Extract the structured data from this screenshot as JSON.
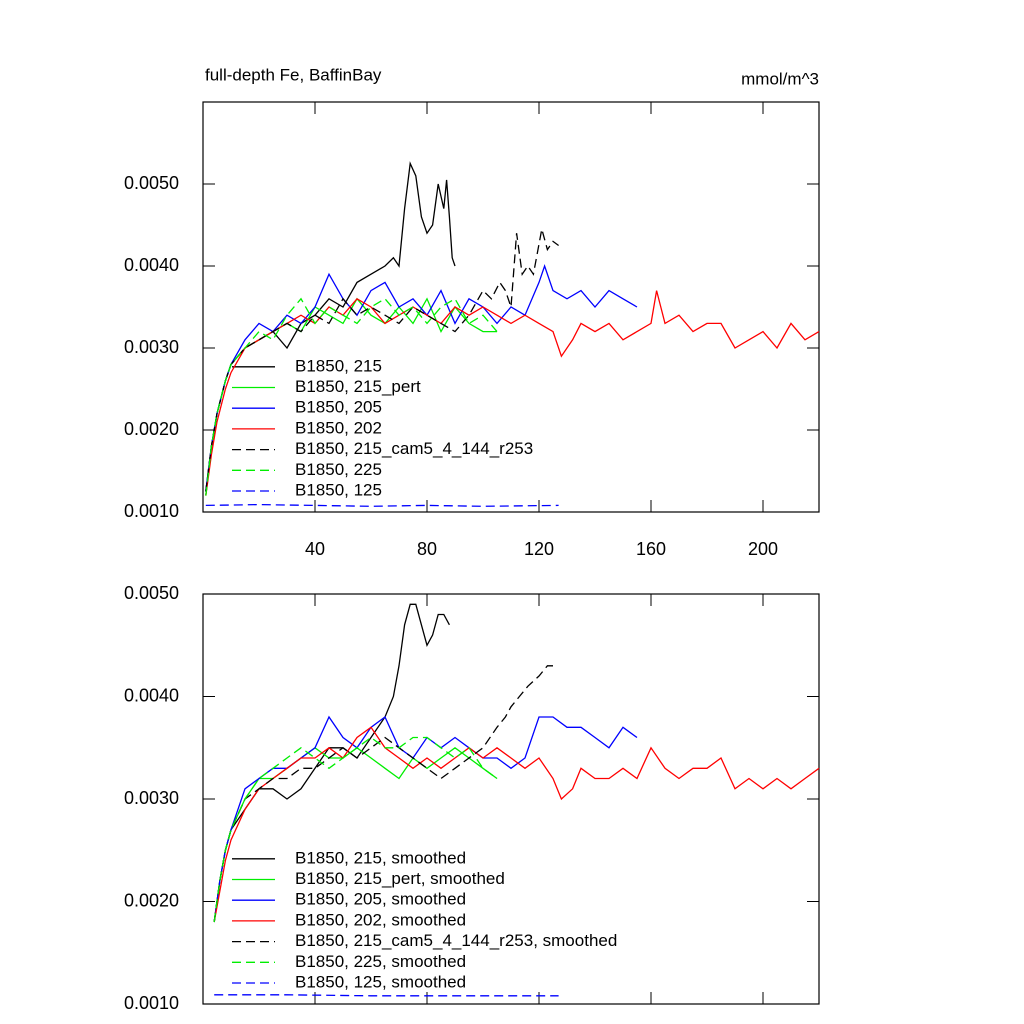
{
  "chart_data": [
    {
      "type": "line",
      "title": "full-depth Fe, BaffinBay",
      "units": "mmol/m^3",
      "xlim": [
        0,
        220
      ],
      "xticks": [
        40,
        80,
        120,
        160,
        200
      ],
      "ylim": [
        0.001,
        0.006
      ],
      "yticks": [
        {
          "value": 0.001,
          "label": "0.0010"
        },
        {
          "value": 0.002,
          "label": "0.0020"
        },
        {
          "value": 0.003,
          "label": "0.0030"
        },
        {
          "value": 0.004,
          "label": "0.0040"
        },
        {
          "value": 0.005,
          "label": "0.0050"
        }
      ],
      "legend": "lower left",
      "series": [
        {
          "name": "B1850, 215",
          "color": "#000000",
          "dashed": false,
          "x": [
            1,
            3,
            5,
            8,
            10,
            15,
            20,
            25,
            30,
            35,
            40,
            45,
            50,
            55,
            60,
            65,
            68,
            70,
            72,
            74,
            76,
            78,
            80,
            82,
            84,
            86,
            87,
            88,
            89,
            90
          ],
          "values": [
            0.00125,
            0.0018,
            0.0022,
            0.0026,
            0.0028,
            0.003,
            0.0031,
            0.0032,
            0.003,
            0.0033,
            0.0034,
            0.0036,
            0.0035,
            0.0038,
            0.0039,
            0.004,
            0.0041,
            0.004,
            0.0047,
            0.00525,
            0.0051,
            0.0046,
            0.0044,
            0.0045,
            0.005,
            0.0047,
            0.00505,
            0.0046,
            0.0041,
            0.004
          ]
        },
        {
          "name": "B1850, 215_pert",
          "color": "#00ee00",
          "dashed": false,
          "x": [
            1,
            3,
            5,
            8,
            10,
            15,
            20,
            25,
            30,
            35,
            40,
            45,
            50,
            55,
            60,
            65,
            70,
            75,
            80,
            85,
            90,
            95,
            100,
            105
          ],
          "values": [
            0.0012,
            0.0018,
            0.0022,
            0.0026,
            0.0028,
            0.003,
            0.0031,
            0.0032,
            0.0033,
            0.0032,
            0.0035,
            0.0034,
            0.0033,
            0.0036,
            0.0034,
            0.0033,
            0.0035,
            0.0033,
            0.0036,
            0.0032,
            0.0035,
            0.0033,
            0.0032,
            0.0032
          ]
        },
        {
          "name": "B1850, 205",
          "color": "#0000ff",
          "dashed": false,
          "x": [
            1,
            3,
            5,
            8,
            10,
            15,
            20,
            25,
            30,
            35,
            40,
            45,
            50,
            55,
            60,
            65,
            70,
            75,
            80,
            85,
            90,
            95,
            100,
            105,
            110,
            115,
            120,
            122,
            125,
            130,
            135,
            140,
            145,
            150,
            155
          ],
          "values": [
            0.00125,
            0.0018,
            0.0022,
            0.0026,
            0.0028,
            0.0031,
            0.0033,
            0.0032,
            0.0034,
            0.0033,
            0.0035,
            0.0039,
            0.0036,
            0.0034,
            0.0037,
            0.0038,
            0.0035,
            0.0036,
            0.0034,
            0.0037,
            0.0033,
            0.0036,
            0.0035,
            0.0033,
            0.0035,
            0.0034,
            0.0038,
            0.004,
            0.0037,
            0.0036,
            0.0037,
            0.0035,
            0.0037,
            0.0036,
            0.0035
          ]
        },
        {
          "name": "B1850, 202",
          "color": "#ff0000",
          "dashed": false,
          "x": [
            1,
            3,
            5,
            8,
            10,
            15,
            20,
            25,
            30,
            35,
            40,
            45,
            50,
            55,
            60,
            65,
            70,
            75,
            80,
            85,
            90,
            95,
            100,
            105,
            110,
            115,
            120,
            125,
            128,
            132,
            135,
            140,
            145,
            150,
            155,
            160,
            162,
            165,
            170,
            175,
            180,
            185,
            190,
            195,
            200,
            205,
            210,
            215,
            220
          ],
          "values": [
            0.0012,
            0.0017,
            0.0021,
            0.0025,
            0.0027,
            0.003,
            0.0031,
            0.0032,
            0.0033,
            0.0034,
            0.0033,
            0.0035,
            0.0034,
            0.0036,
            0.0035,
            0.0033,
            0.0034,
            0.0035,
            0.0034,
            0.0033,
            0.0035,
            0.0034,
            0.0035,
            0.0034,
            0.0033,
            0.0034,
            0.0033,
            0.0032,
            0.0029,
            0.0031,
            0.0033,
            0.0032,
            0.0033,
            0.0031,
            0.0032,
            0.0033,
            0.0037,
            0.0033,
            0.0034,
            0.0032,
            0.0033,
            0.0033,
            0.003,
            0.0031,
            0.0032,
            0.003,
            0.0033,
            0.0031,
            0.0032
          ]
        },
        {
          "name": "B1850, 215_cam5_4_144_r253",
          "color": "#000000",
          "dashed": true,
          "x": [
            1,
            3,
            5,
            8,
            10,
            15,
            20,
            25,
            30,
            35,
            40,
            45,
            50,
            55,
            60,
            65,
            70,
            75,
            80,
            85,
            90,
            95,
            100,
            103,
            106,
            108,
            110,
            112,
            114,
            116,
            118,
            121,
            123,
            125,
            127
          ],
          "values": [
            0.00125,
            0.0018,
            0.0022,
            0.0026,
            0.0028,
            0.003,
            0.0031,
            0.0032,
            0.0033,
            0.0032,
            0.0034,
            0.0033,
            0.0036,
            0.0034,
            0.0035,
            0.0034,
            0.0033,
            0.0035,
            0.0034,
            0.0033,
            0.0032,
            0.0034,
            0.0037,
            0.0036,
            0.0038,
            0.0037,
            0.0035,
            0.0044,
            0.0039,
            0.004,
            0.0039,
            0.00445,
            0.0042,
            0.0043,
            0.00425
          ]
        },
        {
          "name": "B1850, 225",
          "color": "#00ee00",
          "dashed": true,
          "x": [
            1,
            3,
            5,
            8,
            10,
            15,
            20,
            25,
            30,
            35,
            40,
            45,
            50,
            55,
            60,
            65,
            70,
            75,
            80,
            85,
            90,
            95,
            100,
            105
          ],
          "values": [
            0.0012,
            0.0018,
            0.0022,
            0.0026,
            0.0028,
            0.003,
            0.0032,
            0.0031,
            0.0034,
            0.0036,
            0.0033,
            0.0035,
            0.0034,
            0.0033,
            0.0035,
            0.0036,
            0.0034,
            0.0035,
            0.0033,
            0.0035,
            0.0036,
            0.0033,
            0.0034,
            0.0032
          ]
        },
        {
          "name": "B1850, 125",
          "color": "#0000ff",
          "dashed": true,
          "x": [
            1,
            20,
            40,
            60,
            80,
            100,
            127
          ],
          "values": [
            0.00108,
            0.00109,
            0.00108,
            0.00107,
            0.00108,
            0.00107,
            0.00108
          ]
        }
      ]
    },
    {
      "type": "line",
      "xlim": [
        0,
        220
      ],
      "ylim": [
        0.001,
        0.005
      ],
      "yticks": [
        {
          "value": 0.001,
          "label": "0.0010"
        },
        {
          "value": 0.002,
          "label": "0.0020"
        },
        {
          "value": 0.003,
          "label": "0.0030"
        },
        {
          "value": 0.004,
          "label": "0.0040"
        },
        {
          "value": 0.005,
          "label": "0.0050"
        }
      ],
      "legend": "lower left",
      "series": [
        {
          "name": "B1850, 215, smoothed",
          "color": "#000000",
          "dashed": false,
          "x": [
            4,
            6,
            8,
            10,
            15,
            20,
            25,
            30,
            35,
            40,
            45,
            50,
            55,
            60,
            65,
            68,
            70,
            72,
            74,
            76,
            78,
            80,
            82,
            84,
            86,
            88
          ],
          "values": [
            0.0018,
            0.0022,
            0.0025,
            0.0027,
            0.0029,
            0.0031,
            0.0031,
            0.003,
            0.0031,
            0.0033,
            0.0035,
            0.0035,
            0.0034,
            0.0036,
            0.0038,
            0.004,
            0.0043,
            0.0047,
            0.0049,
            0.0049,
            0.0047,
            0.0045,
            0.0046,
            0.0048,
            0.0048,
            0.0047
          ]
        },
        {
          "name": "B1850, 215_pert, smoothed",
          "color": "#00ee00",
          "dashed": false,
          "x": [
            4,
            6,
            8,
            10,
            15,
            20,
            25,
            30,
            35,
            40,
            45,
            50,
            55,
            60,
            65,
            70,
            75,
            80,
            85,
            90,
            95,
            100,
            105
          ],
          "values": [
            0.0018,
            0.0022,
            0.0025,
            0.0027,
            0.003,
            0.0032,
            0.0032,
            0.0033,
            0.0034,
            0.0035,
            0.0034,
            0.0034,
            0.0035,
            0.0034,
            0.0033,
            0.0032,
            0.0034,
            0.0033,
            0.0034,
            0.0035,
            0.0034,
            0.0033,
            0.0032
          ]
        },
        {
          "name": "B1850, 205, smoothed",
          "color": "#0000ff",
          "dashed": false,
          "x": [
            4,
            6,
            8,
            10,
            15,
            20,
            25,
            30,
            35,
            40,
            45,
            50,
            55,
            60,
            65,
            70,
            75,
            80,
            85,
            90,
            95,
            100,
            105,
            110,
            115,
            120,
            125,
            130,
            135,
            140,
            145,
            150,
            155
          ],
          "values": [
            0.0018,
            0.0022,
            0.0025,
            0.0027,
            0.0031,
            0.0032,
            0.0033,
            0.0033,
            0.0034,
            0.0035,
            0.0038,
            0.0036,
            0.0035,
            0.0037,
            0.0038,
            0.0035,
            0.0034,
            0.0036,
            0.0035,
            0.0036,
            0.0035,
            0.0034,
            0.0034,
            0.0033,
            0.0034,
            0.0038,
            0.0038,
            0.0037,
            0.0037,
            0.0036,
            0.0035,
            0.0037,
            0.0036
          ]
        },
        {
          "name": "B1850, 202, smoothed",
          "color": "#ff0000",
          "dashed": false,
          "x": [
            4,
            6,
            8,
            10,
            15,
            20,
            25,
            30,
            35,
            40,
            45,
            50,
            55,
            60,
            65,
            70,
            75,
            80,
            85,
            90,
            95,
            100,
            105,
            110,
            115,
            120,
            125,
            128,
            132,
            135,
            140,
            145,
            150,
            155,
            160,
            165,
            170,
            175,
            180,
            185,
            190,
            195,
            200,
            205,
            210,
            215,
            220
          ],
          "values": [
            0.0018,
            0.0021,
            0.0024,
            0.0026,
            0.0029,
            0.0031,
            0.0032,
            0.0033,
            0.0034,
            0.0034,
            0.0035,
            0.0034,
            0.0036,
            0.0037,
            0.0035,
            0.0034,
            0.0033,
            0.0034,
            0.0033,
            0.0034,
            0.0035,
            0.0034,
            0.0035,
            0.0034,
            0.0033,
            0.0034,
            0.0032,
            0.003,
            0.0031,
            0.0033,
            0.0032,
            0.0032,
            0.0033,
            0.0032,
            0.0035,
            0.0033,
            0.0032,
            0.0033,
            0.0033,
            0.0034,
            0.0031,
            0.0032,
            0.0031,
            0.0032,
            0.0031,
            0.0032,
            0.0033
          ]
        },
        {
          "name": "B1850, 215_cam5_4_144_r253, smoothed",
          "color": "#000000",
          "dashed": true,
          "x": [
            4,
            6,
            8,
            10,
            15,
            20,
            25,
            30,
            35,
            40,
            45,
            50,
            55,
            60,
            65,
            70,
            75,
            80,
            85,
            90,
            95,
            100,
            105,
            108,
            110,
            113,
            116,
            120,
            123,
            125
          ],
          "values": [
            0.0018,
            0.0022,
            0.0025,
            0.0027,
            0.003,
            0.0031,
            0.0032,
            0.0032,
            0.0033,
            0.0033,
            0.0034,
            0.0035,
            0.0034,
            0.0035,
            0.0036,
            0.0035,
            0.0034,
            0.0033,
            0.0032,
            0.0033,
            0.0034,
            0.0035,
            0.0037,
            0.0038,
            0.0039,
            0.004,
            0.0041,
            0.0042,
            0.0043,
            0.0043
          ]
        },
        {
          "name": "B1850, 225, smoothed",
          "color": "#00ee00",
          "dashed": true,
          "x": [
            4,
            6,
            8,
            10,
            15,
            20,
            25,
            30,
            35,
            40,
            45,
            50,
            55,
            60,
            65,
            70,
            75,
            80,
            85,
            90,
            95,
            100,
            105
          ],
          "values": [
            0.0018,
            0.0022,
            0.0025,
            0.0027,
            0.003,
            0.0032,
            0.0033,
            0.0034,
            0.0035,
            0.0034,
            0.0033,
            0.0034,
            0.0035,
            0.0036,
            0.0035,
            0.0035,
            0.0036,
            0.0036,
            0.0035,
            0.0034,
            0.0035,
            0.0033,
            0.0032
          ]
        },
        {
          "name": "B1850, 125, smoothed",
          "color": "#0000ff",
          "dashed": true,
          "x": [
            4,
            30,
            60,
            90,
            127
          ],
          "values": [
            0.00109,
            0.00109,
            0.00108,
            0.00108,
            0.00108
          ]
        }
      ]
    }
  ]
}
